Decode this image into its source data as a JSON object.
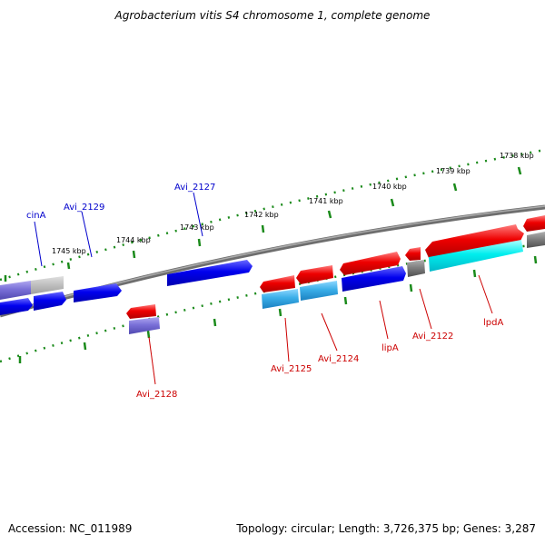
{
  "header": {
    "title": "Agrobacterium vitis S4 chromosome 1, complete genome"
  },
  "footer": {
    "accession": "Accession: NC_011989",
    "summary": "Topology: circular; Length: 3,726,375 bp; Genes: 3,287"
  },
  "ticks": [
    {
      "label": "1738 kbp"
    },
    {
      "label": "1739 kbp"
    },
    {
      "label": "1740 kbp"
    },
    {
      "label": "1741 kbp"
    },
    {
      "label": "1742 kbp"
    },
    {
      "label": "1743 kbp"
    },
    {
      "label": "1744 kbp"
    },
    {
      "label": "1745 kbp"
    }
  ],
  "gene_labels": {
    "cinA": "cinA",
    "avi2129": "Avi_2129",
    "avi2127": "Avi_2127",
    "avi2128": "Avi_2128",
    "avi2125": "Avi_2125",
    "avi2124": "Avi_2124",
    "lipA": "lipA",
    "avi2122": "Avi_2122",
    "lpdA": "lpdA"
  },
  "colors": {
    "plus_strand_label": "#0000cc",
    "minus_strand_label": "#cc0000",
    "backbone": "#808080",
    "tick": "#006400"
  }
}
